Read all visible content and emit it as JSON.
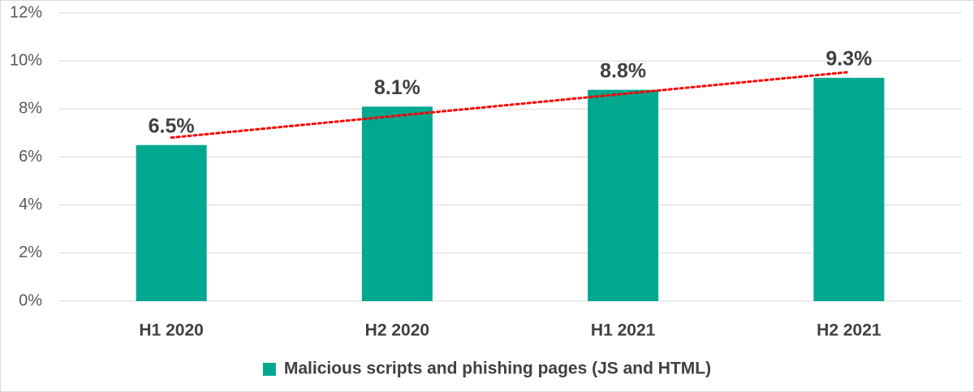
{
  "chart_data": {
    "type": "bar",
    "categories": [
      "H1 2020",
      "H2 2020",
      "H1 2021",
      "H2 2021"
    ],
    "series": [
      {
        "name": "Malicious scripts and phishing pages (JS and HTML)",
        "color": "#00a88f",
        "values": [
          6.5,
          8.1,
          8.8,
          9.3
        ],
        "value_labels": [
          "6.5%",
          "8.1%",
          "8.8%",
          "9.3%"
        ]
      }
    ],
    "ylim": [
      0,
      12
    ],
    "yticks": [
      {
        "value": 0,
        "label": "0%"
      },
      {
        "value": 2,
        "label": "2%"
      },
      {
        "value": 4,
        "label": "4%"
      },
      {
        "value": 6,
        "label": "6%"
      },
      {
        "value": 8,
        "label": "8%"
      },
      {
        "value": 10,
        "label": "10%"
      },
      {
        "value": 12,
        "label": "12%"
      }
    ],
    "grid": true,
    "trendline": {
      "type": "linear",
      "color": "#ff0000"
    },
    "legend": "bottom"
  }
}
